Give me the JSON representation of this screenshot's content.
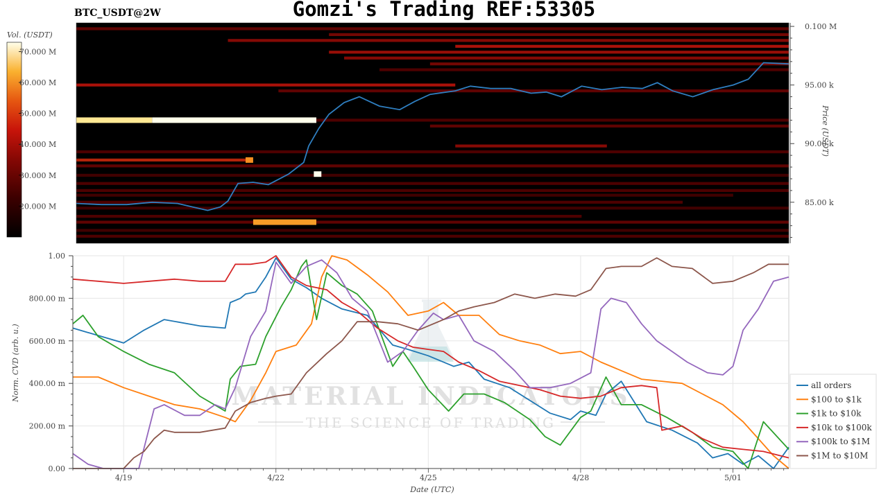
{
  "title": "Gomzi's Trading REF:53305",
  "symbol": "BTC_USDT@2W",
  "chart_data": [
    {
      "type": "heatmap",
      "description_role": "order book liquidity heatmap with price line",
      "colorbar": {
        "title": "Vol. (USDT)",
        "ticks": [
          "70.000 M",
          "60.000 M",
          "50.000 M",
          "40.000 M",
          "30.000 M",
          "20.000 M"
        ],
        "tick_values": [
          70,
          60,
          50,
          40,
          30,
          20
        ],
        "range": [
          10,
          73
        ]
      },
      "y_axis": {
        "title": "Price (USDT)",
        "ticks": [
          "0.100 M",
          "95.00 k",
          "90.00 k",
          "85.00 k"
        ],
        "tick_values": [
          100000,
          95000,
          90000,
          85000
        ],
        "range": [
          81500,
          100300
        ]
      },
      "x_range_days": [
        0,
        14.1
      ],
      "bands": [
        {
          "price": 99800,
          "from": 0,
          "to": 14.1,
          "level": 0.35
        },
        {
          "price": 99300,
          "from": 5,
          "to": 14.1,
          "level": 0.4
        },
        {
          "price": 98800,
          "from": 3,
          "to": 14.1,
          "level": 0.45
        },
        {
          "price": 98300,
          "from": 7.5,
          "to": 14.1,
          "level": 0.55
        },
        {
          "price": 97800,
          "from": 5,
          "to": 14.1,
          "level": 0.5
        },
        {
          "price": 97300,
          "from": 5.3,
          "to": 14.1,
          "level": 0.45
        },
        {
          "price": 96800,
          "from": 7,
          "to": 14.1,
          "level": 0.4
        },
        {
          "price": 96300,
          "from": 6,
          "to": 14.1,
          "level": 0.3
        },
        {
          "price": 95000,
          "from": 0,
          "to": 7.5,
          "level": 0.55
        },
        {
          "price": 94500,
          "from": 4,
          "to": 14.1,
          "level": 0.35
        },
        {
          "price": 92000,
          "from": 0,
          "to": 14.1,
          "level": 0.3
        },
        {
          "price": 91500,
          "from": 7,
          "to": 14.1,
          "level": 0.35
        },
        {
          "price": 89800,
          "from": 7.5,
          "to": 10.5,
          "level": 0.45
        },
        {
          "price": 89300,
          "from": 0,
          "to": 14.1,
          "level": 0.3
        },
        {
          "price": 88600,
          "from": 0,
          "to": 3.4,
          "level": 0.6
        },
        {
          "price": 88100,
          "from": 0,
          "to": 14.1,
          "level": 0.35
        },
        {
          "price": 87300,
          "from": 0,
          "to": 14.1,
          "level": 0.25
        },
        {
          "price": 86600,
          "from": 0,
          "to": 14.1,
          "level": 0.3
        },
        {
          "price": 86000,
          "from": 0,
          "to": 14.1,
          "level": 0.3
        },
        {
          "price": 85600,
          "from": 0,
          "to": 13,
          "level": 0.25
        },
        {
          "price": 85000,
          "from": 0,
          "to": 12,
          "level": 0.3
        },
        {
          "price": 84500,
          "from": 0,
          "to": 14.1,
          "level": 0.25
        },
        {
          "price": 83800,
          "from": 0,
          "to": 10,
          "level": 0.3
        },
        {
          "price": 83300,
          "from": 0,
          "to": 14.1,
          "level": 0.35
        },
        {
          "price": 82600,
          "from": 0,
          "to": 14.1,
          "level": 0.25
        },
        {
          "price": 82100,
          "from": 0,
          "to": 14.1,
          "level": 0.3
        }
      ],
      "highlights": [
        {
          "price": 92000,
          "from": 0,
          "to": 1.5,
          "level": 0.95
        },
        {
          "price": 92000,
          "from": 1.5,
          "to": 4.75,
          "level": 1.0
        },
        {
          "price": 83300,
          "from": 3.5,
          "to": 4.75,
          "level": 0.82
        },
        {
          "price": 88600,
          "from": 3.35,
          "to": 3.5,
          "level": 0.8
        },
        {
          "price": 87400,
          "from": 4.7,
          "to": 4.85,
          "level": 1.0
        }
      ],
      "price_line": {
        "color": "#2f7fc1",
        "days": [
          0,
          0.5,
          1,
          1.5,
          2,
          2.3,
          2.6,
          2.85,
          3,
          3.2,
          3.5,
          3.8,
          4.2,
          4.5,
          4.6,
          4.8,
          5,
          5.3,
          5.6,
          6,
          6.4,
          6.7,
          7,
          7.5,
          7.8,
          8.2,
          8.6,
          9,
          9.3,
          9.6,
          10,
          10.4,
          10.8,
          11.2,
          11.5,
          11.8,
          12.2,
          12.6,
          13,
          13.3,
          13.6,
          14.1
        ],
        "prices": [
          84900,
          84800,
          84800,
          85000,
          84900,
          84600,
          84300,
          84600,
          85100,
          86600,
          86700,
          86500,
          87400,
          88400,
          89800,
          91300,
          92500,
          93500,
          94000,
          93200,
          92900,
          93600,
          94200,
          94500,
          94900,
          94700,
          94700,
          94300,
          94400,
          94000,
          94900,
          94600,
          94800,
          94700,
          95200,
          94500,
          94000,
          94600,
          95000,
          95500,
          96900,
          96800
        ]
      }
    },
    {
      "type": "line",
      "x_ticks": [
        "4/19",
        "4/22",
        "4/25",
        "4/28",
        "5/01"
      ],
      "x_tick_days": [
        1,
        4,
        7,
        10,
        13
      ],
      "x_range_days": [
        0,
        14.1
      ],
      "xlabel": "Date (UTC)",
      "ylabel": "Norm. CVD (arb. u.)",
      "y_ticks": [
        "1.00",
        "800.00 m",
        "600.00 m",
        "400.00 m",
        "200.00 m",
        "0.00"
      ],
      "y_tick_values": [
        1,
        0.8,
        0.6,
        0.4,
        0.2,
        0
      ],
      "ylim": [
        0,
        1
      ],
      "grid": true,
      "legend_position": "bottom-right",
      "series": [
        {
          "name": "all orders",
          "color": "#1f77b4",
          "x": [
            0,
            1,
            1.4,
            1.8,
            2.5,
            3,
            3.1,
            3.3,
            3.4,
            3.6,
            3.8,
            4,
            4.3,
            4.6,
            4.9,
            5.3,
            5.8,
            6.3,
            6.6,
            7,
            7.5,
            7.8,
            8.1,
            8.6,
            9,
            9.4,
            9.8,
            10,
            10.3,
            10.5,
            10.8,
            11.3,
            11.8,
            12.3,
            12.6,
            12.9,
            13.2,
            13.5,
            13.8,
            14.1
          ],
          "y": [
            0.66,
            0.59,
            0.65,
            0.7,
            0.67,
            0.66,
            0.78,
            0.8,
            0.82,
            0.83,
            0.9,
            0.99,
            0.89,
            0.85,
            0.8,
            0.75,
            0.72,
            0.58,
            0.56,
            0.53,
            0.48,
            0.5,
            0.42,
            0.38,
            0.32,
            0.26,
            0.23,
            0.27,
            0.25,
            0.35,
            0.41,
            0.22,
            0.18,
            0.12,
            0.05,
            0.07,
            0.02,
            0.06,
            0.0,
            0.1
          ]
        },
        {
          "name": "$100 to $1k",
          "color": "#ff7f0e",
          "x": [
            0,
            0.5,
            1,
            1.5,
            2,
            2.5,
            3,
            3.2,
            3.5,
            3.8,
            4,
            4.4,
            4.7,
            4.9,
            5.1,
            5.4,
            5.8,
            6.2,
            6.6,
            7,
            7.3,
            7.6,
            8,
            8.4,
            8.8,
            9.2,
            9.6,
            10,
            10.4,
            10.8,
            11.2,
            11.6,
            12,
            12.4,
            12.8,
            13.2,
            13.5,
            13.8,
            14.1
          ],
          "y": [
            0.43,
            0.43,
            0.38,
            0.34,
            0.3,
            0.28,
            0.24,
            0.22,
            0.32,
            0.45,
            0.55,
            0.58,
            0.68,
            0.9,
            1.0,
            0.98,
            0.91,
            0.83,
            0.72,
            0.74,
            0.78,
            0.72,
            0.72,
            0.63,
            0.6,
            0.58,
            0.54,
            0.55,
            0.5,
            0.46,
            0.42,
            0.41,
            0.4,
            0.35,
            0.3,
            0.22,
            0.14,
            0.06,
            0.0
          ]
        },
        {
          "name": "$1k to $10k",
          "color": "#2ca02c",
          "x": [
            0,
            0.2,
            0.5,
            1,
            1.5,
            2,
            2.5,
            3,
            3.1,
            3.3,
            3.6,
            3.8,
            4.1,
            4.3,
            4.5,
            4.6,
            4.8,
            5,
            5.3,
            5.6,
            5.9,
            6.3,
            6.5,
            6.7,
            7,
            7.4,
            7.7,
            8.1,
            8.5,
            9,
            9.3,
            9.6,
            10,
            10.2,
            10.5,
            10.8,
            11.2,
            11.7,
            12.2,
            12.6,
            13,
            13.3,
            13.6,
            14.1
          ],
          "y": [
            0.68,
            0.72,
            0.62,
            0.55,
            0.49,
            0.45,
            0.34,
            0.27,
            0.42,
            0.48,
            0.49,
            0.62,
            0.76,
            0.84,
            0.95,
            0.98,
            0.7,
            0.92,
            0.86,
            0.82,
            0.74,
            0.48,
            0.55,
            0.48,
            0.37,
            0.27,
            0.35,
            0.35,
            0.31,
            0.23,
            0.15,
            0.11,
            0.24,
            0.27,
            0.43,
            0.3,
            0.3,
            0.24,
            0.17,
            0.1,
            0.08,
            0.0,
            0.22,
            0.09
          ]
        },
        {
          "name": "$10k to $100k",
          "color": "#d62728",
          "x": [
            0,
            0.5,
            1,
            1.5,
            2,
            2.5,
            3,
            3.2,
            3.5,
            3.8,
            4,
            4.3,
            4.6,
            5,
            5.3,
            5.6,
            6,
            6.4,
            6.7,
            7,
            7.3,
            7.6,
            8,
            8.4,
            8.8,
            9.2,
            9.6,
            10,
            10.4,
            10.8,
            11.2,
            11.5,
            11.6,
            12,
            12.4,
            12.8,
            13.2,
            13.6,
            14.1
          ],
          "y": [
            0.89,
            0.88,
            0.87,
            0.88,
            0.89,
            0.88,
            0.88,
            0.96,
            0.96,
            0.97,
            1.0,
            0.9,
            0.86,
            0.84,
            0.78,
            0.74,
            0.66,
            0.6,
            0.57,
            0.56,
            0.55,
            0.5,
            0.46,
            0.41,
            0.39,
            0.37,
            0.34,
            0.33,
            0.34,
            0.38,
            0.39,
            0.38,
            0.18,
            0.2,
            0.14,
            0.1,
            0.09,
            0.08,
            0.05
          ]
        },
        {
          "name": "$100k to $1M",
          "color": "#9467bd",
          "x": [
            0,
            0.3,
            0.6,
            1,
            1.3,
            1.6,
            1.8,
            2.2,
            2.5,
            2.8,
            3,
            3.2,
            3.5,
            3.8,
            4,
            4.3,
            4.6,
            4.9,
            5.2,
            5.5,
            5.8,
            6.2,
            6.5,
            6.8,
            7.1,
            7.3,
            7.6,
            7.9,
            8.3,
            8.7,
            9,
            9.4,
            9.8,
            10.2,
            10.4,
            10.6,
            10.9,
            11.2,
            11.5,
            11.8,
            12.1,
            12.5,
            12.8,
            13,
            13.2,
            13.5,
            13.8,
            14.1
          ],
          "y": [
            0.07,
            0.02,
            0.0,
            0.0,
            0.0,
            0.28,
            0.3,
            0.25,
            0.25,
            0.3,
            0.28,
            0.38,
            0.62,
            0.74,
            0.97,
            0.87,
            0.95,
            0.98,
            0.92,
            0.8,
            0.74,
            0.5,
            0.55,
            0.65,
            0.73,
            0.7,
            0.72,
            0.6,
            0.55,
            0.46,
            0.38,
            0.38,
            0.4,
            0.45,
            0.75,
            0.8,
            0.78,
            0.68,
            0.6,
            0.55,
            0.5,
            0.45,
            0.44,
            0.48,
            0.65,
            0.75,
            0.88,
            0.9
          ]
        },
        {
          "name": "$1M to $10M",
          "color": "#8c564b",
          "x": [
            0,
            0.5,
            1,
            1.2,
            1.4,
            1.6,
            1.8,
            2,
            2.5,
            3,
            3.2,
            3.5,
            3.8,
            4,
            4.3,
            4.6,
            5,
            5.3,
            5.6,
            6,
            6.4,
            6.8,
            7,
            7.3,
            7.6,
            7.9,
            8.3,
            8.7,
            9.1,
            9.5,
            9.9,
            10.2,
            10.5,
            10.8,
            11.2,
            11.5,
            11.8,
            12.2,
            12.6,
            13,
            13.4,
            13.7,
            14.1
          ],
          "y": [
            0.0,
            0.0,
            0.0,
            0.05,
            0.08,
            0.14,
            0.18,
            0.17,
            0.17,
            0.19,
            0.27,
            0.31,
            0.33,
            0.34,
            0.35,
            0.45,
            0.54,
            0.6,
            0.69,
            0.69,
            0.68,
            0.65,
            0.67,
            0.7,
            0.74,
            0.76,
            0.78,
            0.82,
            0.8,
            0.82,
            0.81,
            0.84,
            0.94,
            0.95,
            0.95,
            0.99,
            0.95,
            0.94,
            0.87,
            0.88,
            0.92,
            0.96,
            0.96
          ]
        }
      ]
    }
  ],
  "watermark": {
    "line1": "MATERIAL INDICATORS",
    "line2": "THE SCIENCE OF TRADING"
  }
}
